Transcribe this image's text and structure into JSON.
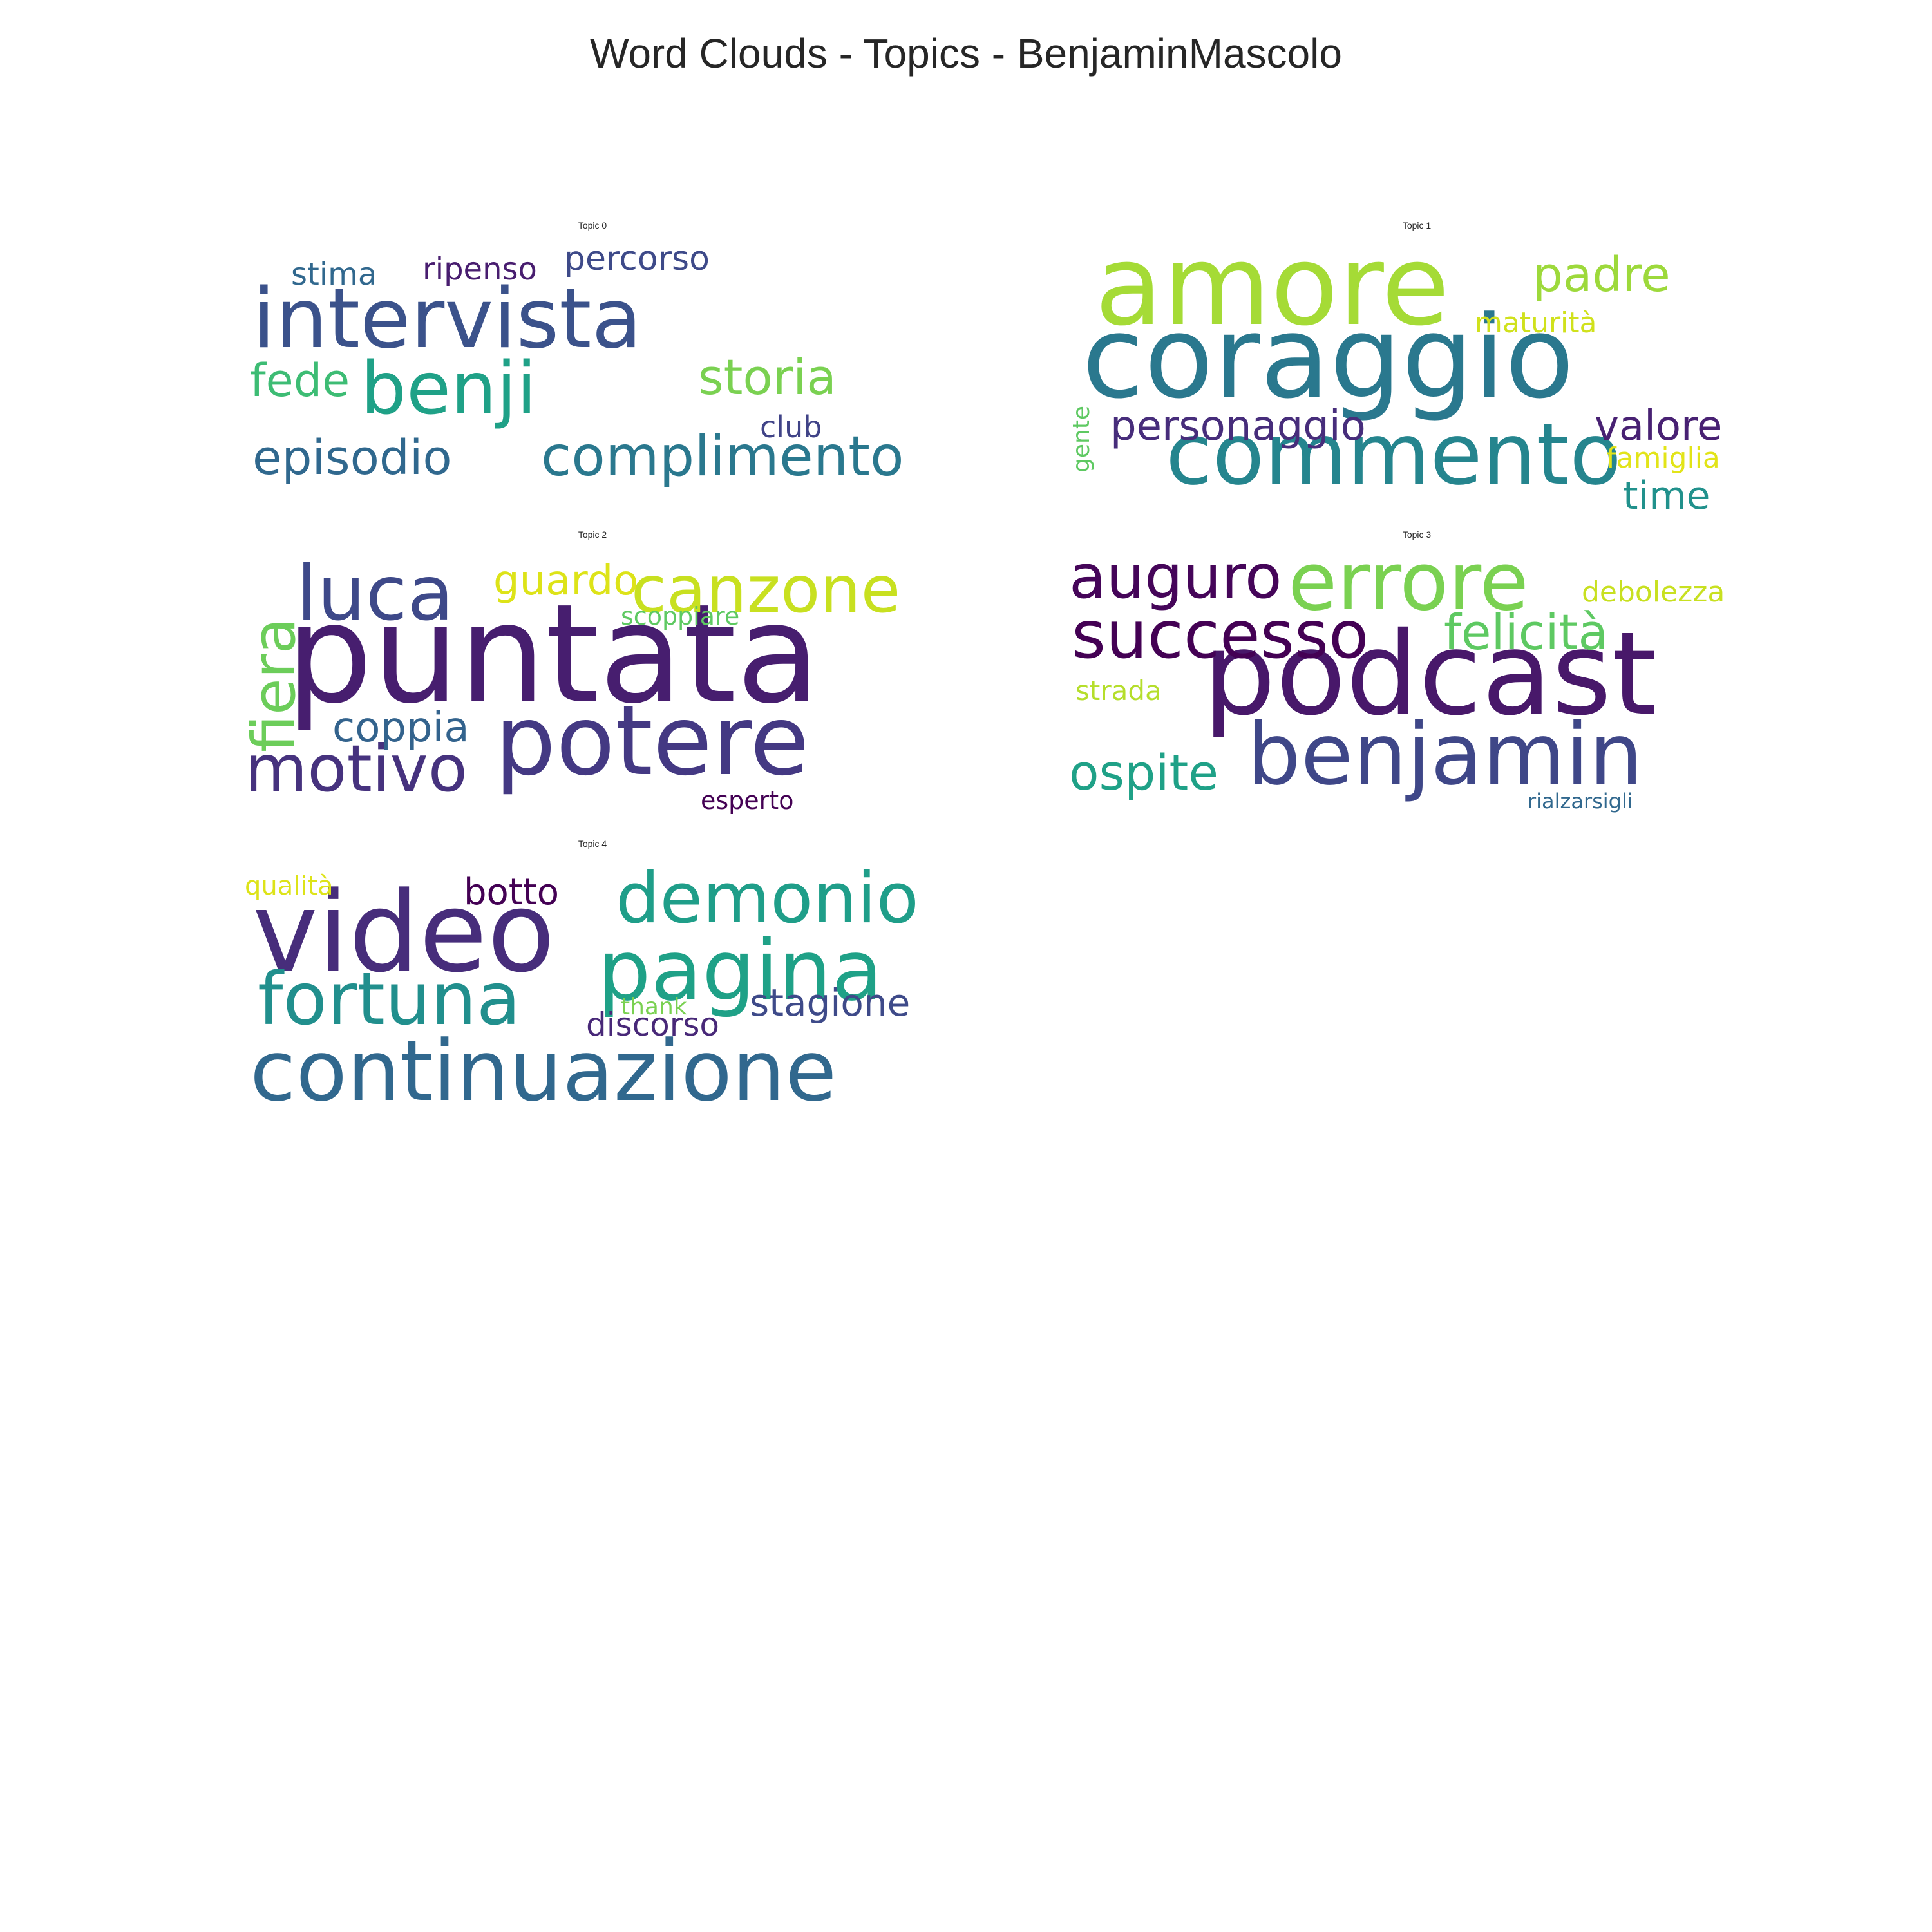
{
  "title": "Word Clouds - Topics - BenjaminMascolo",
  "topics": [
    {
      "title": "Topic 0",
      "words": [
        "intervista",
        "benji",
        "complimento",
        "episodio",
        "storia",
        "fede",
        "percorso",
        "ripenso",
        "stima",
        "club"
      ],
      "colors": [
        "#3b528b",
        "#1fa187",
        "#2a788e",
        "#30688e",
        "#7ad151",
        "#3dbc74",
        "#3e4a89",
        "#481d6f",
        "#31688e",
        "#404387"
      ]
    },
    {
      "title": "Topic 1",
      "words": [
        "coraggio",
        "amore",
        "commento",
        "padre",
        "personaggio",
        "valore",
        "time",
        "maturità",
        "famiglia",
        "gente"
      ],
      "colors": [
        "#2a788e",
        "#a5db36",
        "#25858e",
        "#9dd93b",
        "#472d7b",
        "#482173",
        "#21918c",
        "#d0e11c",
        "#e2e418",
        "#5ec962"
      ]
    },
    {
      "title": "Topic 2",
      "words": [
        "puntata",
        "potere",
        "luca",
        "canzone",
        "fiera",
        "motivo",
        "guardo",
        "coppia",
        "scoppiare",
        "esperto"
      ],
      "colors": [
        "#471e6f",
        "#443983",
        "#3e4989",
        "#c8e020",
        "#6ccd5a",
        "#46327e",
        "#dde318",
        "#33638d",
        "#5ec962",
        "#440154"
      ]
    },
    {
      "title": "Topic 3",
      "words": [
        "podcast",
        "benjamin",
        "errore",
        "successo",
        "auguro",
        "felicità",
        "ospite",
        "debolezza",
        "strada",
        "rialzarsigli"
      ],
      "colors": [
        "#48186a",
        "#3f4788",
        "#7ad151",
        "#440154",
        "#450559",
        "#5ec962",
        "#1fa187",
        "#c8e020",
        "#b5de2b",
        "#31688e"
      ]
    },
    {
      "title": "Topic 4",
      "words": [
        "video",
        "continuazione",
        "pagina",
        "demonio",
        "fortuna",
        "stagione",
        "botto",
        "discorso",
        "qualità",
        "thank"
      ],
      "colors": [
        "#472d7b",
        "#31688e",
        "#1fa187",
        "#1f9e89",
        "#218f8d",
        "#3e4a89",
        "#440154",
        "#482878",
        "#dde318",
        "#7ad151"
      ]
    }
  ]
}
